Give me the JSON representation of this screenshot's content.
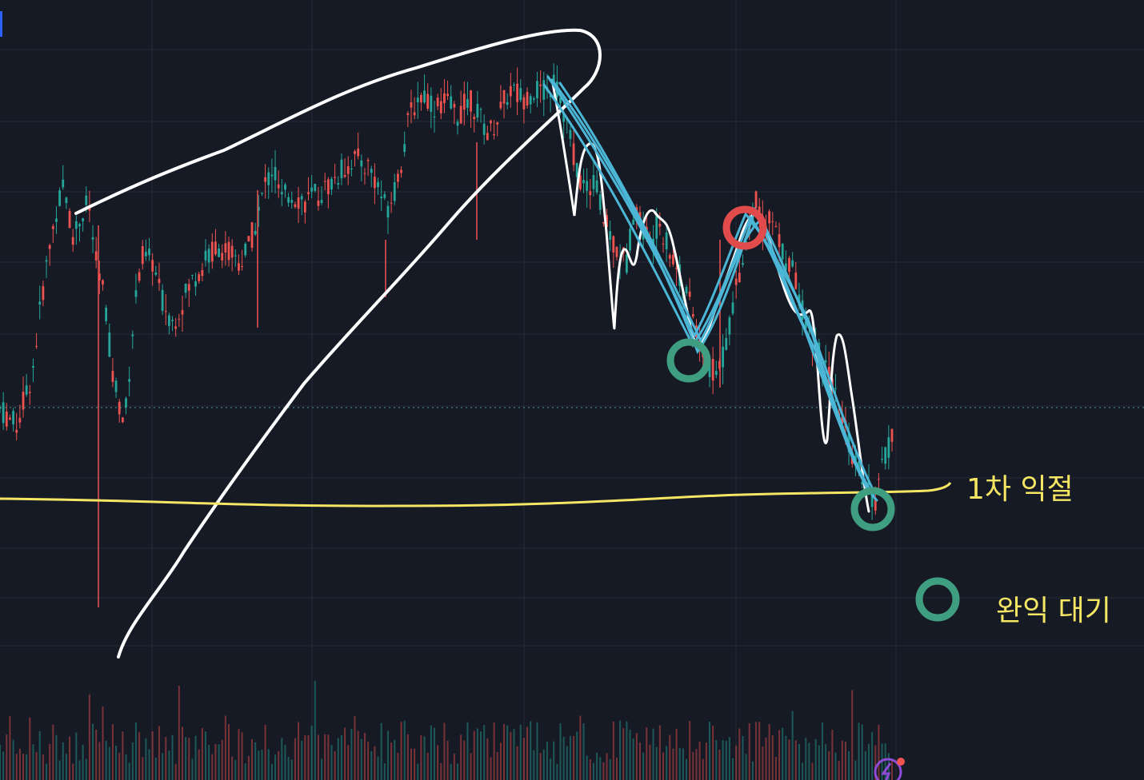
{
  "colors": {
    "background": "#161a25",
    "grid": "#262b38",
    "up": "#26a69a",
    "down": "#ef5350",
    "annotation_yellow": "#f5e663",
    "annotation_white": "#ffffff",
    "annotation_cyan": "#4bb6d6",
    "circle_red": "#e24b4b",
    "circle_green": "#3f9e80",
    "current_price_line": "#4a9a90"
  },
  "annotations": {
    "first_take_profit": "1차 익절",
    "full_take_profit_wait": "완익 대기"
  },
  "chart_data": {
    "type": "candlestick",
    "title": "",
    "xlabel": "",
    "ylabel": "",
    "grid": true,
    "legend": "none",
    "price_path": [
      [
        0,
        0.22
      ],
      [
        0.02,
        0.18
      ],
      [
        0.04,
        0.3
      ],
      [
        0.055,
        0.52
      ],
      [
        0.07,
        0.68
      ],
      [
        0.08,
        0.74
      ],
      [
        0.09,
        0.62
      ],
      [
        0.1,
        0.66
      ],
      [
        0.11,
        0.7
      ],
      [
        0.12,
        0.55
      ],
      [
        0.13,
        0.48
      ],
      [
        0.14,
        0.3
      ],
      [
        0.155,
        0.18
      ],
      [
        0.165,
        0.4
      ],
      [
        0.175,
        0.57
      ],
      [
        0.19,
        0.56
      ],
      [
        0.2,
        0.48
      ],
      [
        0.215,
        0.42
      ],
      [
        0.225,
        0.46
      ],
      [
        0.24,
        0.52
      ],
      [
        0.255,
        0.56
      ],
      [
        0.27,
        0.6
      ],
      [
        0.285,
        0.58
      ],
      [
        0.3,
        0.56
      ],
      [
        0.31,
        0.6
      ],
      [
        0.32,
        0.66
      ],
      [
        0.33,
        0.74
      ],
      [
        0.34,
        0.78
      ],
      [
        0.35,
        0.7
      ],
      [
        0.36,
        0.72
      ],
      [
        0.38,
        0.7
      ],
      [
        0.4,
        0.72
      ],
      [
        0.42,
        0.76
      ],
      [
        0.44,
        0.8
      ],
      [
        0.46,
        0.78
      ],
      [
        0.47,
        0.74
      ],
      [
        0.48,
        0.68
      ],
      [
        0.49,
        0.72
      ],
      [
        0.5,
        0.8
      ],
      [
        0.51,
        0.9
      ],
      [
        0.52,
        0.94
      ],
      [
        0.53,
        0.95
      ],
      [
        0.54,
        0.92
      ],
      [
        0.555,
        0.93
      ],
      [
        0.57,
        0.9
      ],
      [
        0.585,
        0.94
      ],
      [
        0.6,
        0.88
      ],
      [
        0.61,
        0.86
      ],
      [
        0.62,
        0.9
      ],
      [
        0.635,
        0.96
      ],
      [
        0.65,
        0.94
      ],
      [
        0.665,
        0.96
      ],
      [
        0.68,
        0.95
      ],
      [
        0.69,
        0.98
      ],
      [
        0.7,
        0.92
      ],
      [
        0.71,
        0.84
      ],
      [
        0.72,
        0.76
      ],
      [
        0.73,
        0.72
      ],
      [
        0.74,
        0.76
      ],
      [
        0.75,
        0.66
      ],
      [
        0.76,
        0.62
      ],
      [
        0.77,
        0.58
      ],
      [
        0.78,
        0.56
      ],
      [
        0.79,
        0.7
      ],
      [
        0.8,
        0.64
      ],
      [
        0.81,
        0.6
      ],
      [
        0.82,
        0.66
      ],
      [
        0.83,
        0.6
      ],
      [
        0.84,
        0.56
      ],
      [
        0.85,
        0.5
      ],
      [
        0.86,
        0.46
      ],
      [
        0.87,
        0.38
      ],
      [
        0.88,
        0.32
      ],
      [
        0.89,
        0.3
      ],
      [
        0.9,
        0.34
      ],
      [
        0.91,
        0.44
      ],
      [
        0.92,
        0.54
      ],
      [
        0.93,
        0.62
      ],
      [
        0.94,
        0.7
      ],
      [
        0.95,
        0.64
      ],
      [
        0.96,
        0.66
      ],
      [
        0.97,
        0.6
      ],
      [
        0.98,
        0.56
      ],
      [
        0.99,
        0.52
      ],
      [
        1.0,
        0.44
      ],
      [
        1.01,
        0.38
      ],
      [
        1.02,
        0.34
      ],
      [
        1.03,
        0.3
      ],
      [
        1.04,
        0.24
      ],
      [
        1.05,
        0.18
      ],
      [
        1.06,
        0.12
      ],
      [
        1.07,
        0.08
      ],
      [
        1.08,
        0.04
      ],
      [
        1.09,
        0.0
      ],
      [
        1.1,
        0.1
      ],
      [
        1.11,
        0.16
      ]
    ]
  }
}
